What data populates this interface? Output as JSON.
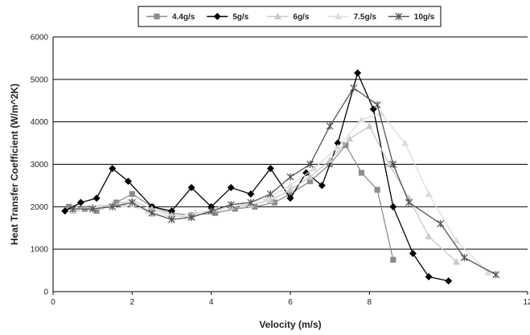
{
  "chart_data": {
    "type": "line",
    "title": "",
    "xlabel": "Velocity (m/s)",
    "ylabel": "Heat Transfer Coefficient  (W/m^2K)",
    "xlim": [
      0,
      12
    ],
    "ylim": [
      0,
      6000
    ],
    "xticks": [
      0,
      2,
      4,
      6,
      8,
      12
    ],
    "xtick_labels": [
      "0",
      "2",
      "4",
      "6",
      "8",
      "12"
    ],
    "yticks": [
      0,
      1000,
      2000,
      3000,
      4000,
      5000,
      6000
    ],
    "grid": "horizontal",
    "legend_position": "top",
    "series": [
      {
        "name": "4.4g/s",
        "marker": "square",
        "color": "#8c8c8c",
        "x": [
          0.4,
          0.8,
          1.1,
          1.6,
          2.0,
          2.5,
          3.0,
          3.5,
          4.1,
          4.6,
          5.1,
          5.6,
          6.0,
          6.5,
          7.0,
          7.4,
          7.8,
          8.2,
          8.6
        ],
        "y": [
          2000,
          1950,
          1900,
          2100,
          2300,
          2000,
          1850,
          1800,
          1850,
          1950,
          2000,
          2100,
          2300,
          2600,
          3000,
          3450,
          2800,
          2400,
          750
        ]
      },
      {
        "name": "5g/s",
        "marker": "diamond",
        "color": "#000000",
        "x": [
          0.3,
          0.7,
          1.1,
          1.5,
          1.9,
          2.5,
          3.0,
          3.5,
          4.0,
          4.5,
          5.0,
          5.5,
          6.0,
          6.4,
          6.8,
          7.2,
          7.7,
          8.1,
          8.6,
          9.1,
          9.5,
          10.0
        ],
        "y": [
          1900,
          2100,
          2200,
          2900,
          2600,
          2000,
          1900,
          2450,
          2000,
          2450,
          2300,
          2900,
          2200,
          2800,
          2500,
          3500,
          5150,
          4300,
          2000,
          900,
          350,
          250
        ]
      },
      {
        "name": "6g/s",
        "marker": "triangle",
        "color": "#c8c8c8",
        "x": [
          0.5,
          1.0,
          1.5,
          2.0,
          2.5,
          3.0,
          3.5,
          4.0,
          4.5,
          5.0,
          5.5,
          6.0,
          6.5,
          7.0,
          7.5,
          8.0,
          8.5,
          9.0,
          9.5,
          10.2
        ],
        "y": [
          1900,
          2000,
          2050,
          2150,
          1950,
          1800,
          1750,
          1900,
          2000,
          2050,
          2150,
          2400,
          2700,
          3100,
          3600,
          3900,
          3000,
          2200,
          1300,
          700
        ]
      },
      {
        "name": "7.5g/s",
        "marker": "triangle",
        "color": "#dcdcdc",
        "x": [
          0.6,
          1.2,
          1.8,
          2.4,
          3.0,
          3.6,
          4.2,
          4.8,
          5.4,
          6.0,
          6.6,
          7.2,
          7.8,
          8.3,
          8.9,
          9.5,
          10.2,
          11.0
        ],
        "y": [
          1950,
          2000,
          2050,
          1900,
          1750,
          1850,
          1950,
          2050,
          2200,
          2500,
          2900,
          3400,
          4050,
          4200,
          3500,
          2300,
          1200,
          450
        ]
      },
      {
        "name": "10g/s",
        "marker": "star",
        "color": "#555555",
        "x": [
          0.5,
          1.0,
          1.5,
          2.0,
          2.5,
          3.0,
          3.5,
          4.0,
          4.5,
          5.0,
          5.5,
          6.0,
          6.5,
          7.0,
          7.6,
          8.2,
          8.6,
          9.0,
          9.8,
          10.4,
          11.2
        ],
        "y": [
          1950,
          1950,
          2000,
          2100,
          1850,
          1700,
          1750,
          1900,
          2050,
          2100,
          2300,
          2700,
          3000,
          3900,
          4800,
          4400,
          3000,
          2100,
          1600,
          800,
          400
        ]
      }
    ]
  }
}
